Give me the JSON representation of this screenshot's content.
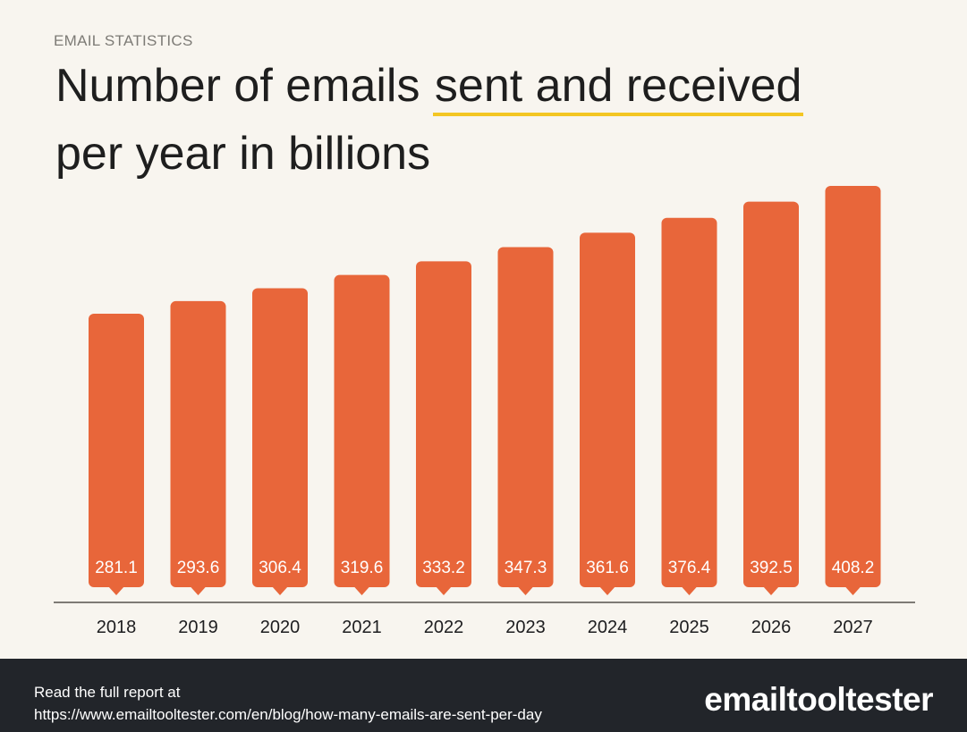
{
  "header": {
    "eyebrow": "EMAIL STATISTICS",
    "title_part1": "Number of emails ",
    "title_highlight": "sent and received",
    "title_line2": "per year in billions"
  },
  "colors": {
    "bar": "#e8663a",
    "highlight_underline": "#f3c623",
    "background": "#f8f5ef",
    "footer": "#22252a"
  },
  "chart_data": {
    "type": "bar",
    "title": "Number of emails sent and received per year in billions",
    "categories": [
      "2018",
      "2019",
      "2020",
      "2021",
      "2022",
      "2023",
      "2024",
      "2025",
      "2026",
      "2027"
    ],
    "values": [
      281.1,
      293.6,
      306.4,
      319.6,
      333.2,
      347.3,
      361.6,
      376.4,
      392.5,
      408.2
    ],
    "xlabel": "",
    "ylabel": "",
    "grid": false,
    "data_labels": true
  },
  "footer": {
    "line1": "Read the full report at",
    "line2": "https://www.emailtooltester.com/en/blog/how-many-emails-are-sent-per-day",
    "logo_text": "emailtooltester"
  }
}
